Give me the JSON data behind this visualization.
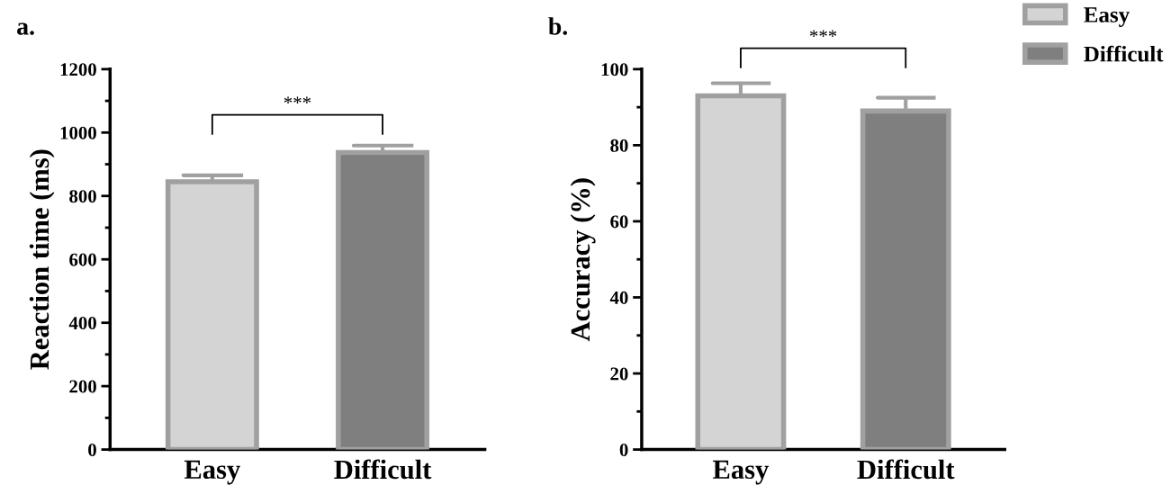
{
  "chart_data": [
    {
      "type": "bar",
      "title": "a.",
      "ylabel": "Reaction time (ms)",
      "categories": [
        "Easy",
        "Difficult"
      ],
      "series": [
        {
          "color": "#d4d4d4",
          "values": [
            845,
            null
          ],
          "errors": [
            20,
            null
          ]
        },
        {
          "color": "#7f7f7f",
          "values": [
            null,
            937
          ],
          "errors": [
            null,
            22
          ]
        }
      ],
      "ylim": [
        0,
        1200
      ],
      "yticks": [
        0,
        200,
        400,
        600,
        800,
        1000,
        1200
      ],
      "annotations": [
        "***"
      ]
    },
    {
      "type": "bar",
      "title": "b.",
      "ylabel": "Accuracy (%)",
      "categories": [
        "Easy",
        "Difficult"
      ],
      "series": [
        {
          "name": "Easy",
          "color": "#d4d4d4",
          "values": [
            93.0,
            null
          ],
          "errors": [
            3.3,
            null
          ]
        },
        {
          "name": "Difficult",
          "color": "#7f7f7f",
          "values": [
            null,
            89.0
          ],
          "errors": [
            null,
            3.5
          ]
        }
      ],
      "ylim": [
        0,
        100
      ],
      "yticks": [
        0,
        20,
        40,
        60,
        80,
        100
      ],
      "annotations": [
        "***"
      ],
      "legend": "top right"
    }
  ]
}
